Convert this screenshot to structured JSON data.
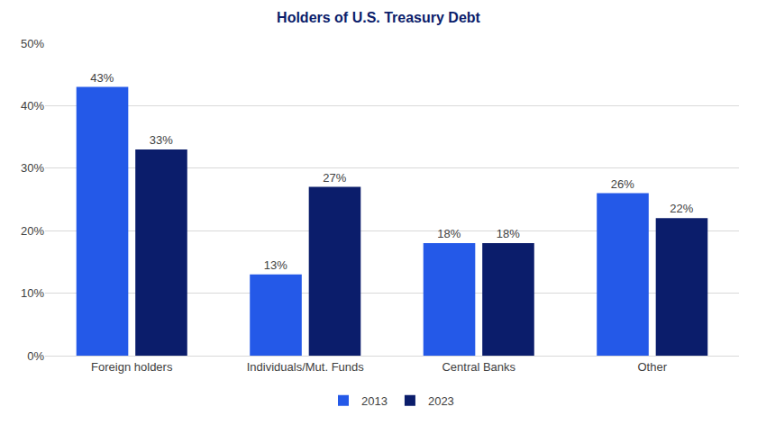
{
  "chart_data": {
    "type": "bar",
    "title": "Holders of U.S. Treasury Debt",
    "categories": [
      "Foreign holders",
      "Individuals/Mut. Funds",
      "Central Banks",
      "Other"
    ],
    "series": [
      {
        "name": "2013",
        "color": "#2459e8",
        "values": [
          43,
          13,
          18,
          26
        ],
        "value_labels": [
          "43%",
          "13%",
          "18%",
          "26%"
        ]
      },
      {
        "name": "2023",
        "color": "#0b1d6b",
        "values": [
          33,
          27,
          18,
          22
        ],
        "value_labels": [
          "33%",
          "27%",
          "18%",
          "22%"
        ]
      }
    ],
    "ylim": [
      0,
      50
    ],
    "yticks": [
      {
        "value": 0,
        "label": "0%"
      },
      {
        "value": 10,
        "label": "10%"
      },
      {
        "value": 20,
        "label": "20%"
      },
      {
        "value": 30,
        "label": "30%"
      },
      {
        "value": 40,
        "label": "40%"
      },
      {
        "value": 50,
        "label": "50%"
      }
    ],
    "grid": true,
    "legend": "bottom",
    "data_labels": true
  }
}
